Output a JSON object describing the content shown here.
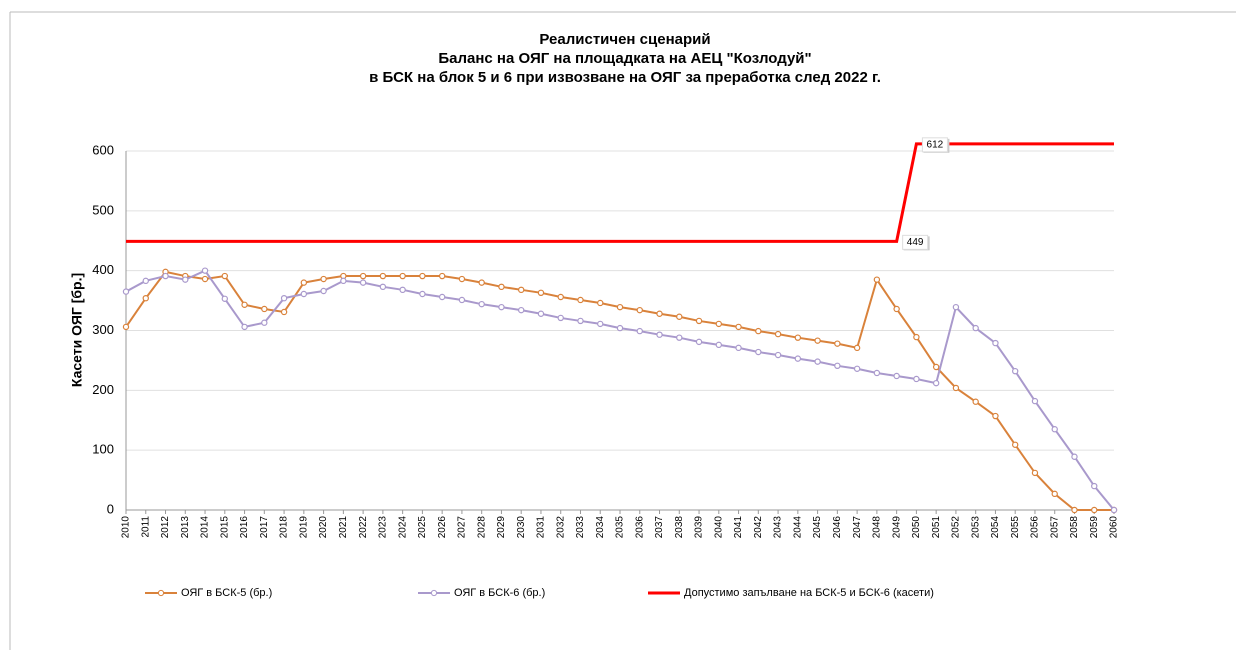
{
  "chart_data": {
    "type": "line",
    "title": [
      "Реалистичен сценарий",
      "Баланс на ОЯГ на площадката на АЕЦ \"Козлодуй\"",
      "в БСК на блок 5 и 6 при извозване на ОЯГ за преработка след 2022 г."
    ],
    "y_label": "Касети ОЯГ [бр.]",
    "categories": [
      "2010",
      "2011",
      "2012",
      "2013",
      "2014",
      "2015",
      "2016",
      "2017",
      "2018",
      "2019",
      "2020",
      "2021",
      "2022",
      "2023",
      "2024",
      "2025",
      "2026",
      "2027",
      "2028",
      "2029",
      "2030",
      "2031",
      "2032",
      "2033",
      "2034",
      "2035",
      "2036",
      "2037",
      "2038",
      "2039",
      "2040",
      "2041",
      "2042",
      "2043",
      "2044",
      "2045",
      "2046",
      "2047",
      "2048",
      "2049",
      "2050",
      "2051",
      "2052",
      "2053",
      "2054",
      "2055",
      "2056",
      "2057",
      "2058",
      "2059",
      "2060"
    ],
    "series": [
      {
        "name": "ОЯГ в БСК-5 (бр.)",
        "color": "#d9823b",
        "markers": true,
        "values": [
          306,
          354,
          398,
          391,
          386,
          391,
          343,
          336,
          331,
          380,
          386,
          391,
          391,
          391,
          391,
          391,
          391,
          386,
          380,
          373,
          368,
          363,
          356,
          351,
          346,
          339,
          334,
          328,
          323,
          316,
          311,
          306,
          299,
          294,
          288,
          283,
          278,
          271,
          385,
          336,
          289,
          239,
          204,
          181,
          157,
          109,
          62,
          27,
          0,
          0,
          0
        ]
      },
      {
        "name": "ОЯГ в БСК-6 (бр.)",
        "color": "#a999cc",
        "markers": true,
        "values": [
          365,
          383,
          391,
          385,
          400,
          353,
          306,
          313,
          354,
          361,
          366,
          383,
          380,
          373,
          368,
          361,
          356,
          351,
          344,
          339,
          334,
          328,
          321,
          316,
          311,
          304,
          299,
          293,
          288,
          281,
          276,
          271,
          264,
          259,
          253,
          248,
          241,
          236,
          229,
          224,
          219,
          212,
          339,
          304,
          279,
          232,
          182,
          135,
          89,
          40,
          0
        ]
      },
      {
        "name": "Допустимо запълване на БСК-5 и БСК-6 (касети)",
        "color": "#ff0000",
        "markers": false,
        "values": [
          449,
          449,
          449,
          449,
          449,
          449,
          449,
          449,
          449,
          449,
          449,
          449,
          449,
          449,
          449,
          449,
          449,
          449,
          449,
          449,
          449,
          449,
          449,
          449,
          449,
          449,
          449,
          449,
          449,
          449,
          449,
          449,
          449,
          449,
          449,
          449,
          449,
          449,
          449,
          449,
          612,
          612,
          612,
          612,
          612,
          612,
          612,
          612,
          612,
          612,
          612
        ],
        "value_labels": [
          null,
          null,
          null,
          null,
          null,
          null,
          null,
          null,
          null,
          null,
          null,
          null,
          null,
          null,
          null,
          null,
          null,
          null,
          null,
          null,
          null,
          null,
          null,
          null,
          null,
          null,
          null,
          null,
          null,
          null,
          null,
          null,
          null,
          null,
          null,
          null,
          null,
          null,
          null,
          "449",
          "612",
          null,
          null,
          null,
          null,
          null,
          null,
          null,
          null,
          null,
          null
        ]
      }
    ],
    "ylim": [
      0,
      600
    ],
    "yticks": [
      0,
      100,
      200,
      300,
      400,
      500,
      600
    ],
    "grid": true,
    "legend": "bottom"
  }
}
